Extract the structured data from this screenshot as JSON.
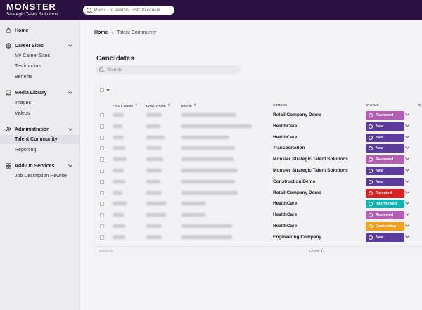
{
  "app": {
    "brand": "MONSTER",
    "sub_brand": "Strategic Talent Solutions"
  },
  "search": {
    "placeholder": "Press / to search, ESC to cancel"
  },
  "sidebar": {
    "home": "Home",
    "career_sites": {
      "label": "Career Sites",
      "items": [
        "My Career Sites",
        "Testimonials",
        "Benefits"
      ]
    },
    "media_library": {
      "label": "Media Library",
      "items": [
        "Images",
        "Videos"
      ]
    },
    "administration": {
      "label": "Administration",
      "items": [
        "Talent Community",
        "Reporting"
      ],
      "active": "Talent Community"
    },
    "addons": {
      "label": "Add-On Services",
      "items": [
        "Job Description Rewrite"
      ]
    }
  },
  "breadcrumb": {
    "home": "Home",
    "current": "Talent Community"
  },
  "page": {
    "title": "Candidates",
    "search_placeholder": "Search"
  },
  "table": {
    "columns": [
      "FIRST NAME",
      "LAST NAME",
      "EMAIL",
      "SOURCE",
      "STATUS",
      "S"
    ],
    "rows": [
      {
        "source": "Retail Company Demo",
        "status": "Reviewed"
      },
      {
        "source": "HealthCare",
        "status": "New"
      },
      {
        "source": "HealthCare",
        "status": "New"
      },
      {
        "source": "Transportation",
        "status": "New"
      },
      {
        "source": "Monster Strategic Talent Solutions",
        "status": "Reviewed"
      },
      {
        "source": "Monster Strategic Talent Solutions",
        "status": "New"
      },
      {
        "source": "Construction Demo",
        "status": "New"
      },
      {
        "source": "Retail Company Demo",
        "status": "Rejected"
      },
      {
        "source": "HealthCare",
        "status": "Interviewed"
      },
      {
        "source": "HealthCare",
        "status": "Reviewed"
      },
      {
        "source": "HealthCare",
        "status": "Contacting"
      },
      {
        "source": "Engineering Company",
        "status": "New"
      }
    ],
    "footer": {
      "previous": "Previous",
      "pager": "1-12 of 12"
    }
  },
  "status_colors": {
    "Reviewed": "#b45db5",
    "New": "#5b3c9e",
    "Rejected": "#e02020",
    "Interviewed": "#13b3b0",
    "Contacting": "#f0a020"
  },
  "icons": {
    "home": "home-icon",
    "career_sites": "globe-icon",
    "media_library": "image-icon",
    "administration": "gear-icon",
    "addons": "grid-icon"
  }
}
